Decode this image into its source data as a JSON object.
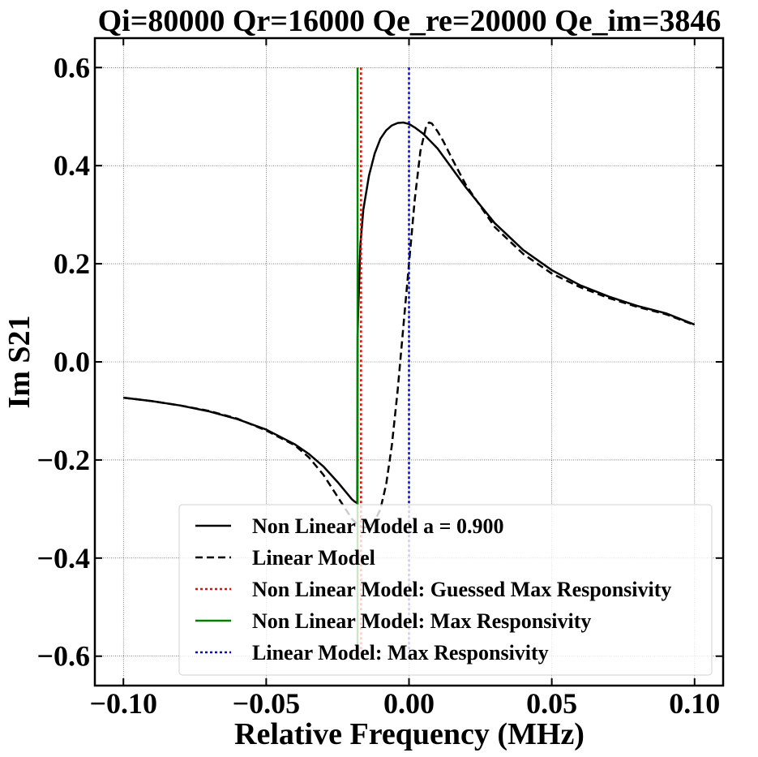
{
  "chart_data": {
    "type": "line",
    "title": "Qi=80000 Qr=16000 Qe_re=20000 Qe_im=3846",
    "xlabel": "Relative Frequency (MHz)",
    "ylabel": "Im S21",
    "xlim": [
      -0.11,
      0.11
    ],
    "ylim": [
      -0.66,
      0.66
    ],
    "grid": true,
    "legend_position": "lower-right",
    "xticks": [
      {
        "value": -0.1,
        "label": "−0.10"
      },
      {
        "value": -0.05,
        "label": "−0.05"
      },
      {
        "value": 0.0,
        "label": "0.00"
      },
      {
        "value": 0.05,
        "label": "0.05"
      },
      {
        "value": 0.1,
        "label": "0.10"
      }
    ],
    "yticks": [
      {
        "value": -0.6,
        "label": "−0.6"
      },
      {
        "value": -0.4,
        "label": "−0.4"
      },
      {
        "value": -0.2,
        "label": "−0.2"
      },
      {
        "value": 0.0,
        "label": "0.0"
      },
      {
        "value": 0.2,
        "label": "0.2"
      },
      {
        "value": 0.4,
        "label": "0.4"
      },
      {
        "value": 0.6,
        "label": "0.6"
      }
    ],
    "series": [
      {
        "name": "Non Linear Model a = 0.900",
        "color": "#000000",
        "dash": "solid",
        "x": [
          -0.1,
          -0.09,
          -0.08,
          -0.07,
          -0.06,
          -0.05,
          -0.04,
          -0.035,
          -0.03,
          -0.025,
          -0.022,
          -0.02,
          -0.019,
          -0.0181,
          -0.018,
          -0.0178,
          -0.017,
          -0.016,
          -0.014,
          -0.012,
          -0.01,
          -0.008,
          -0.006,
          -0.004,
          -0.002,
          0.0,
          0.002,
          0.005,
          0.01,
          0.02,
          0.03,
          0.04,
          0.05,
          0.06,
          0.07,
          0.08,
          0.09,
          0.1
        ],
        "y": [
          -0.073,
          -0.08,
          -0.089,
          -0.101,
          -0.117,
          -0.138,
          -0.168,
          -0.188,
          -0.213,
          -0.245,
          -0.266,
          -0.28,
          -0.285,
          -0.288,
          0.05,
          0.1,
          0.24,
          0.31,
          0.38,
          0.425,
          0.455,
          0.472,
          0.482,
          0.487,
          0.488,
          0.485,
          0.478,
          0.465,
          0.435,
          0.355,
          0.283,
          0.228,
          0.187,
          0.156,
          0.133,
          0.114,
          0.099,
          0.076
        ]
      },
      {
        "name": "Linear Model",
        "color": "#000000",
        "dash": "dashed",
        "x": [
          -0.1,
          -0.09,
          -0.08,
          -0.07,
          -0.06,
          -0.05,
          -0.04,
          -0.035,
          -0.03,
          -0.025,
          -0.02,
          -0.018,
          -0.016,
          -0.014,
          -0.012,
          -0.01,
          -0.008,
          -0.006,
          -0.004,
          -0.002,
          0.0,
          0.002,
          0.004,
          0.006,
          0.007,
          0.008,
          0.01,
          0.012,
          0.015,
          0.02,
          0.03,
          0.04,
          0.05,
          0.06,
          0.07,
          0.08,
          0.09,
          0.1
        ],
        "y": [
          -0.073,
          -0.08,
          -0.089,
          -0.1,
          -0.116,
          -0.14,
          -0.17,
          -0.195,
          -0.23,
          -0.275,
          -0.32,
          -0.332,
          -0.338,
          -0.336,
          -0.325,
          -0.3,
          -0.25,
          -0.17,
          -0.06,
          0.07,
          0.2,
          0.33,
          0.43,
          0.48,
          0.488,
          0.486,
          0.47,
          0.45,
          0.415,
          0.36,
          0.275,
          0.22,
          0.18,
          0.152,
          0.13,
          0.112,
          0.097,
          0.075
        ]
      },
      {
        "name": "Non Linear Model: Guessed Max Responsivity",
        "color": "#ff0000",
        "dash": "dotted",
        "vline": -0.0168
      },
      {
        "name": "Non Linear Model: Max Responsivity",
        "color": "#008000",
        "dash": "solid",
        "vline": -0.018
      },
      {
        "name": "Linear Model: Max Responsivity",
        "color": "#0000ff",
        "dash": "dotted",
        "vline": 0.0
      }
    ],
    "vline_yrange": [
      -0.6,
      0.6
    ]
  }
}
